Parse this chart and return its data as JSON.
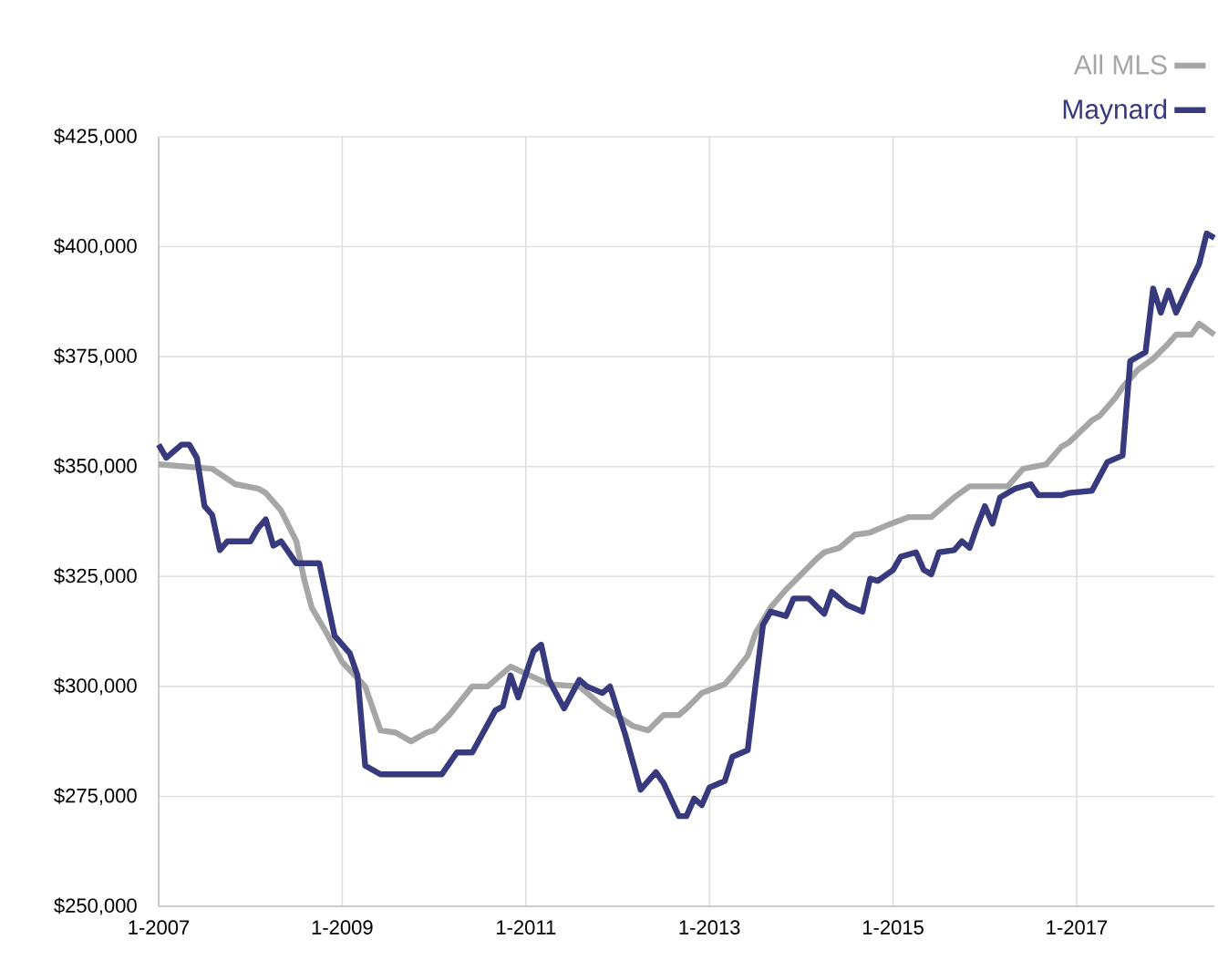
{
  "chart_data": {
    "type": "line",
    "xlim": [
      "2007-01",
      "2018-07"
    ],
    "xticks": [
      {
        "value": "2007-01",
        "label": "1-2007"
      },
      {
        "value": "2009-01",
        "label": "1-2009"
      },
      {
        "value": "2011-01",
        "label": "1-2011"
      },
      {
        "value": "2013-01",
        "label": "1-2013"
      },
      {
        "value": "2015-01",
        "label": "1-2015"
      },
      {
        "value": "2017-01",
        "label": "1-2017"
      }
    ],
    "ylim": [
      250000,
      425000
    ],
    "yticks": [
      {
        "value": 250000,
        "label": "$250,000"
      },
      {
        "value": 275000,
        "label": "$275,000"
      },
      {
        "value": 300000,
        "label": "$300,000"
      },
      {
        "value": 325000,
        "label": "$325,000"
      },
      {
        "value": 350000,
        "label": "$350,000"
      },
      {
        "value": 375000,
        "label": "$375,000"
      },
      {
        "value": 400000,
        "label": "$400,000"
      },
      {
        "value": 425000,
        "label": "$425,000"
      }
    ],
    "grid": true,
    "legend": "top right",
    "marker": "none",
    "line_style": "solid",
    "series": [
      {
        "name": "All MLS",
        "color": "#a6a6a6",
        "x": [
          "2007-01",
          "2007-08",
          "2007-11",
          "2008-02",
          "2008-03",
          "2008-05",
          "2008-07",
          "2008-08",
          "2008-09",
          "2008-11",
          "2009-01",
          "2009-04",
          "2009-06",
          "2009-08",
          "2009-10",
          "2009-12",
          "2010-01",
          "2010-03",
          "2010-06",
          "2010-08",
          "2010-11",
          "2011-04",
          "2011-08",
          "2011-11",
          "2012-03",
          "2012-05",
          "2012-07",
          "2012-09",
          "2012-10",
          "2012-12",
          "2013-03",
          "2013-04",
          "2013-06",
          "2013-07",
          "2013-09",
          "2013-11",
          "2014-01",
          "2014-03",
          "2014-04",
          "2014-06",
          "2014-08",
          "2014-10",
          "2014-12",
          "2015-03",
          "2015-06",
          "2015-07",
          "2015-09",
          "2015-11",
          "2016-04",
          "2016-06",
          "2016-09",
          "2016-11",
          "2016-12",
          "2017-03",
          "2017-04",
          "2017-06",
          "2017-07",
          "2017-09",
          "2017-11",
          "2018-01",
          "2018-02",
          "2018-04",
          "2018-05",
          "2018-07"
        ],
        "values": [
          350500,
          349500,
          346000,
          345000,
          344000,
          340000,
          333000,
          324500,
          318000,
          312000,
          305500,
          300000,
          290000,
          289500,
          287500,
          289500,
          290000,
          293500,
          300000,
          300000,
          304500,
          300500,
          300000,
          295500,
          291000,
          290000,
          293500,
          293500,
          295000,
          298500,
          300500,
          302500,
          307000,
          312000,
          318000,
          322000,
          325500,
          329000,
          330500,
          331500,
          334500,
          335000,
          336500,
          338500,
          338500,
          340000,
          343000,
          345500,
          345500,
          349500,
          350500,
          354500,
          355500,
          360500,
          361500,
          365500,
          368000,
          372000,
          374500,
          378000,
          380000,
          380000,
          382500,
          380000
        ]
      },
      {
        "name": "Maynard",
        "color": "#383a7e",
        "x": [
          "2007-01",
          "2007-02",
          "2007-04",
          "2007-05",
          "2007-06",
          "2007-07",
          "2007-08",
          "2007-09",
          "2007-10",
          "2008-01",
          "2008-02",
          "2008-03",
          "2008-04",
          "2008-05",
          "2008-07",
          "2008-10",
          "2008-12",
          "2009-02",
          "2009-03",
          "2009-04",
          "2009-06",
          "2010-02",
          "2010-04",
          "2010-06",
          "2010-09",
          "2010-10",
          "2010-11",
          "2010-12",
          "2011-02",
          "2011-03",
          "2011-04",
          "2011-06",
          "2011-08",
          "2011-09",
          "2011-11",
          "2011-12",
          "2012-02",
          "2012-04",
          "2012-06",
          "2012-07",
          "2012-09",
          "2012-10",
          "2012-11",
          "2012-12",
          "2013-01",
          "2013-03",
          "2013-04",
          "2013-06",
          "2013-07",
          "2013-08",
          "2013-09",
          "2013-11",
          "2013-12",
          "2014-02",
          "2014-04",
          "2014-05",
          "2014-07",
          "2014-09",
          "2014-10",
          "2014-11",
          "2015-01",
          "2015-02",
          "2015-04",
          "2015-05",
          "2015-06",
          "2015-07",
          "2015-09",
          "2015-10",
          "2015-11",
          "2015-12",
          "2016-01",
          "2016-02",
          "2016-03",
          "2016-04",
          "2016-05",
          "2016-07",
          "2016-08",
          "2016-11",
          "2016-12",
          "2017-03",
          "2017-05",
          "2017-07",
          "2017-08",
          "2017-10",
          "2017-11",
          "2017-12",
          "2018-01",
          "2018-02",
          "2018-04",
          "2018-05",
          "2018-06",
          "2018-07"
        ],
        "values": [
          355000,
          352000,
          355000,
          355000,
          352000,
          341000,
          339000,
          331000,
          333000,
          333000,
          336000,
          338000,
          332000,
          333000,
          328000,
          328000,
          311500,
          307500,
          302500,
          282000,
          280000,
          280000,
          285000,
          285000,
          294500,
          295500,
          302500,
          297500,
          308000,
          309500,
          301500,
          295000,
          301500,
          300000,
          298500,
          300000,
          289000,
          276500,
          280500,
          278000,
          270500,
          270500,
          274500,
          273000,
          277000,
          278500,
          284000,
          285500,
          300000,
          314000,
          317000,
          316000,
          320000,
          320000,
          316500,
          321500,
          318500,
          317000,
          324500,
          324000,
          326500,
          329500,
          330500,
          326500,
          325500,
          330500,
          331000,
          333000,
          331500,
          336500,
          341000,
          337000,
          343000,
          344000,
          345000,
          346000,
          343500,
          343500,
          344000,
          344500,
          351000,
          352500,
          374000,
          376000,
          390500,
          385000,
          390000,
          385000,
          392500,
          396000,
          403000,
          402000
        ]
      }
    ]
  }
}
